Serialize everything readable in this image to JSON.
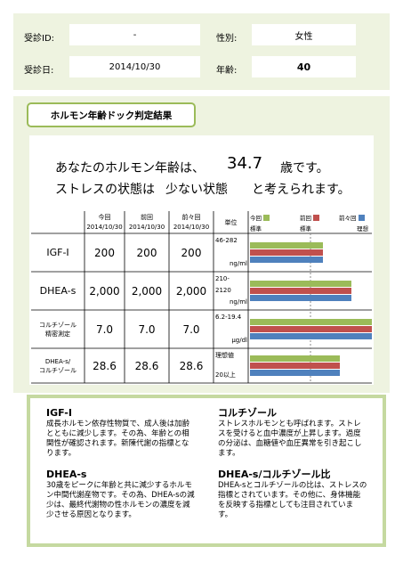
{
  "header": {
    "fields": [
      {
        "label": "受診ID:",
        "value": "-"
      },
      {
        "label": "性別:",
        "value": "女性"
      },
      {
        "label": "受診日:",
        "value": "2014/10/30"
      },
      {
        "label": "年齢:",
        "value": "40"
      }
    ]
  },
  "section_tab": "ホルモン年齢ドック判定結果",
  "summary": {
    "line1": [
      "あなたのホルモン年齢は、",
      "34.7",
      "歳です。"
    ],
    "line2": [
      "ストレスの状態は",
      "少ない状態",
      "と考えられます。"
    ]
  },
  "table": {
    "columns": [
      [
        "今回",
        "2014/10/30"
      ],
      [
        "前回",
        "2014/10/30"
      ],
      [
        "前々回",
        "2014/10/30"
      ]
    ],
    "unit_header": "単位",
    "legend": [
      {
        "name": "今回",
        "color": "#9bbb59"
      },
      {
        "name": "前回",
        "color": "#c0504d"
      },
      {
        "name": "前々回",
        "color": "#4f81bd"
      }
    ],
    "legend_sub": [
      "標準",
      "標準",
      "理想"
    ],
    "rows": [
      {
        "label": [
          "IGF-I"
        ],
        "values": [
          "200",
          "200",
          "200"
        ],
        "unit": [
          "46-282",
          "ng/ml"
        ]
      },
      {
        "label": [
          "DHEA-s"
        ],
        "values": [
          "2,000",
          "2,000",
          "2,000"
        ],
        "unit": [
          "210-",
          "2120",
          "ng/ml"
        ]
      },
      {
        "label": [
          "コルチゾール",
          "精密測定"
        ],
        "values": [
          "7.0",
          "7.0",
          "7.0"
        ],
        "unit": [
          "6.2-19.4",
          "μg/dl"
        ]
      },
      {
        "label": [
          "DHEA-s/",
          "コルチゾール"
        ],
        "values": [
          "28.6",
          "28.6",
          "28.6"
        ],
        "unit": [
          "理想値",
          "20以上"
        ]
      }
    ]
  },
  "notes": [
    {
      "title": "IGF-I",
      "text": "成長ホルモン依存性物質で、成人後は加齢とともに減少します。その為、年齢との相関性が確認されます。新陳代謝の指標となります。"
    },
    {
      "title": "コルチゾール",
      "text": "ストレスホルモンとも呼ばれます。ストレスを受けると血中濃度が上昇します。過度の分泌は、血糖値や血圧異常を引き起こします。"
    },
    {
      "title": "DHEA-s",
      "text": "30歳をピークに年齢と共に減少するホルモン中間代謝産物です。その為、DHEA-sの減少は、最終代謝物の性ホルモンの濃度を減少させる原因となります。"
    },
    {
      "title": "DHEA-s/コルチゾール比",
      "text": "DHEA-sとコルチゾールの比は、ストレスの指標とされています。その他に、身体機能を反映する指標としても注目されています。"
    }
  ]
}
